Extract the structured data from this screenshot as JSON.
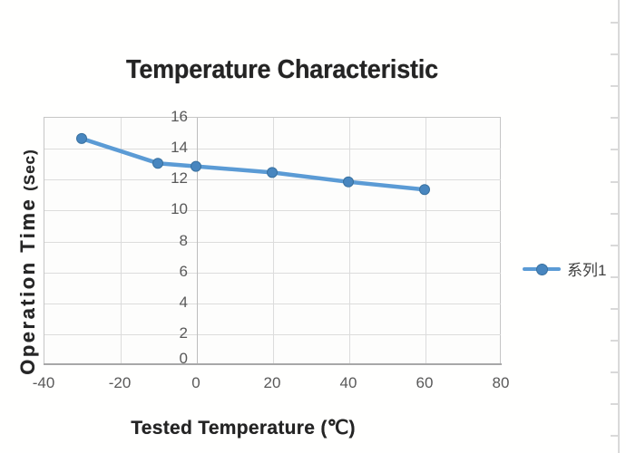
{
  "chart": {
    "colors": {
      "series_line": "#5b9bd5",
      "marker_fill": "#4886bf",
      "marker_edge": "#39719f",
      "gridline": "#dcdcdc",
      "axis_line": "#a8a8a8",
      "title_text": "#242424",
      "tick_text": "#595959"
    }
  },
  "chart_data": {
    "type": "line",
    "title": "Temperature Characteristic",
    "xlabel": "Tested Temperature (℃)",
    "ylabel": "Operation Time (Sec)",
    "ylabel_main": "Operation Time",
    "ylabel_unit": "(Sec)",
    "x": [
      -30,
      -10,
      0,
      20,
      40,
      60
    ],
    "series": [
      {
        "name": "系列1",
        "values": [
          14.6,
          13.0,
          12.8,
          12.4,
          11.8,
          11.3
        ]
      }
    ],
    "xlim": [
      -40,
      80
    ],
    "ylim": [
      0,
      16
    ],
    "x_ticks": [
      -40,
      -20,
      0,
      20,
      40,
      60,
      80
    ],
    "y_ticks": [
      16,
      14,
      12,
      10,
      8,
      6,
      4,
      2,
      0
    ],
    "grid": true,
    "legend_position": "right"
  }
}
